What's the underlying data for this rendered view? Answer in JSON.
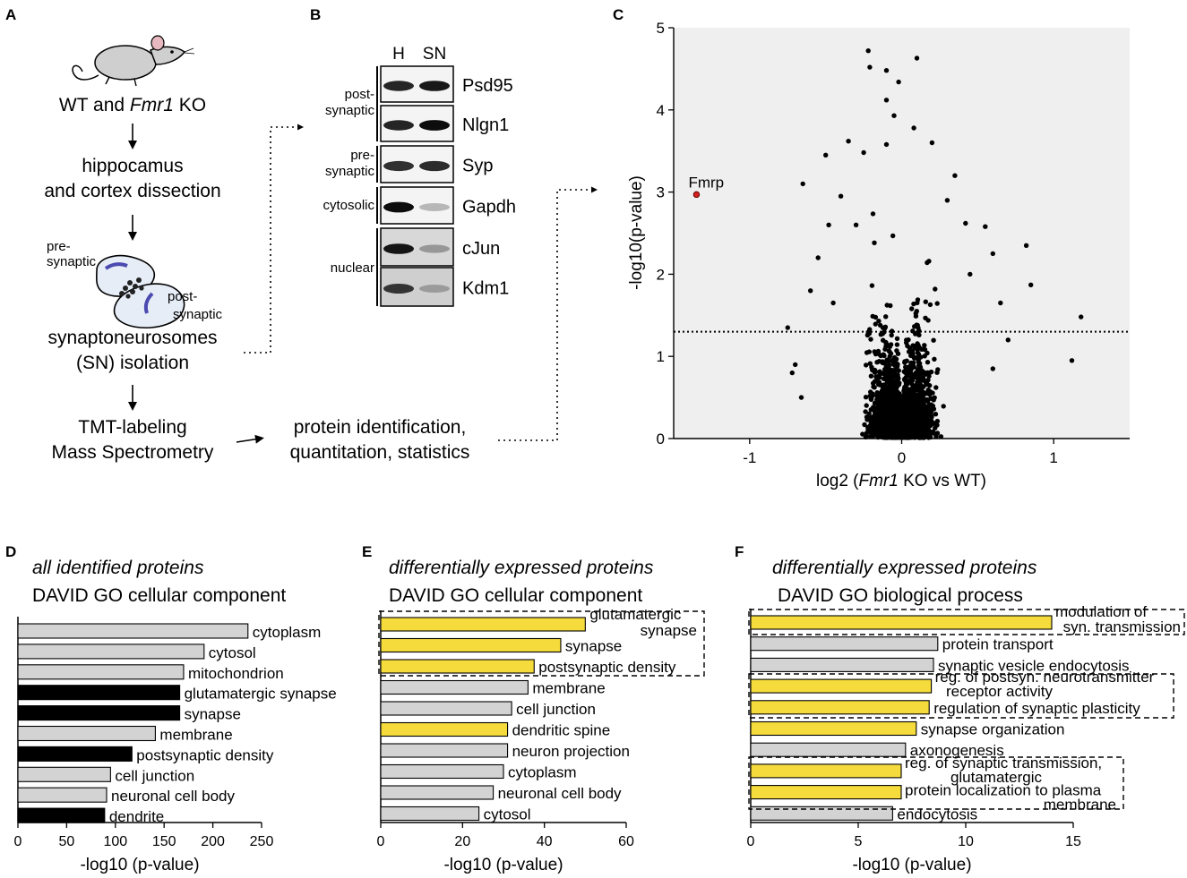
{
  "panel_a": {
    "letter": "A",
    "mouse_label_pre": "WT and ",
    "mouse_label_gene": "Fmr1",
    "mouse_label_post": " KO",
    "step1_line1": "hippocamus",
    "step1_line2": "and cortex dissection",
    "pre_synaptic_1": "pre-",
    "pre_synaptic_2": "synaptic",
    "post_synaptic_1": "post-",
    "post_synaptic_2": "synaptic",
    "step2_line1": "synaptoneurosomes",
    "step2_line2": "(SN) isolation",
    "step3_line1": "TMT-labeling",
    "step3_line2": "Mass Spectrometry",
    "step4_line1": "protein identification,",
    "step4_line2": "quantitation, statistics"
  },
  "panel_b": {
    "letter": "B",
    "col_h": "H",
    "col_sn": "SN",
    "groups": [
      {
        "label1": "post-",
        "label2": "synaptic"
      },
      {
        "label1": "pre-",
        "label2": "synaptic"
      },
      {
        "label1": "cytosolic",
        "label2": ""
      },
      {
        "label1": "nuclear",
        "label2": ""
      }
    ],
    "blots": [
      "Psd95",
      "Nlgn1",
      "Syp",
      "Gapdh",
      "cJun",
      "Kdm1"
    ]
  },
  "panel_c": {
    "letter": "C",
    "chart_data": {
      "type": "scatter",
      "title": "",
      "xlabel_pre": "log2 (",
      "xlabel_gene": "Fmr1",
      "xlabel_post": " KO vs WT)",
      "ylabel": "-log10(p-value)",
      "xlim": [
        -1.5,
        1.5
      ],
      "ylim": [
        0,
        5
      ],
      "xticks": [
        "-1",
        "0",
        "1"
      ],
      "yticks": [
        "0",
        "1",
        "2",
        "3",
        "4",
        "5"
      ],
      "threshold_y": 1.3,
      "highlight": {
        "name": "Fmrp",
        "x": -1.35,
        "y": 2.97,
        "color": "#d62020"
      },
      "outliers": [
        [
          -0.22,
          4.72
        ],
        [
          0.1,
          4.63
        ],
        [
          -0.21,
          4.52
        ],
        [
          -0.1,
          4.48
        ],
        [
          -0.02,
          4.34
        ],
        [
          -0.1,
          4.12
        ],
        [
          -0.05,
          3.93
        ],
        [
          0.08,
          3.78
        ],
        [
          -0.1,
          3.58
        ],
        [
          -0.35,
          3.62
        ],
        [
          -0.65,
          3.1
        ],
        [
          -0.5,
          3.45
        ],
        [
          -0.25,
          3.48
        ],
        [
          0.2,
          3.6
        ],
        [
          0.35,
          3.2
        ],
        [
          0.42,
          2.62
        ],
        [
          0.55,
          2.58
        ],
        [
          0.82,
          2.35
        ],
        [
          0.85,
          1.87
        ],
        [
          1.18,
          1.48
        ],
        [
          1.12,
          0.95
        ],
        [
          0.6,
          2.25
        ],
        [
          0.7,
          1.2
        ],
        [
          -0.6,
          1.8
        ],
        [
          -0.55,
          2.2
        ],
        [
          -0.48,
          2.6
        ],
        [
          -0.75,
          1.35
        ],
        [
          -0.7,
          0.9
        ],
        [
          -0.72,
          0.8
        ],
        [
          -0.66,
          0.5
        ],
        [
          -0.45,
          1.65
        ],
        [
          0.65,
          1.65
        ],
        [
          0.6,
          0.85
        ],
        [
          0.3,
          2.9
        ],
        [
          -0.4,
          2.95
        ],
        [
          0.45,
          2.0
        ],
        [
          -0.3,
          2.6
        ]
      ],
      "point_count": 3500
    }
  },
  "panel_d": {
    "letter": "D",
    "title1": "all identified proteins",
    "title2": "DAVID GO cellular component",
    "chart_data": {
      "type": "bar",
      "orientation": "horizontal",
      "xlabel": "-log10 (p-value)",
      "xlim": [
        0,
        250
      ],
      "xticks": [
        "0",
        "50",
        "100",
        "150",
        "200",
        "250"
      ],
      "bars": [
        {
          "label": "cytoplasm",
          "value": 236,
          "color": "#d3d3d3"
        },
        {
          "label": "cytosol",
          "value": 191,
          "color": "#d3d3d3"
        },
        {
          "label": "mitochondrion",
          "value": 170,
          "color": "#d3d3d3"
        },
        {
          "label": "glutamatergic synapse",
          "value": 166,
          "color": "#000000"
        },
        {
          "label": "synapse",
          "value": 166,
          "color": "#000000"
        },
        {
          "label": "membrane",
          "value": 141,
          "color": "#d3d3d3"
        },
        {
          "label": "postsynaptic density",
          "value": 117,
          "color": "#000000"
        },
        {
          "label": "cell junction",
          "value": 95,
          "color": "#d3d3d3"
        },
        {
          "label": "neuronal cell body",
          "value": 91,
          "color": "#d3d3d3"
        },
        {
          "label": "dendrite",
          "value": 89,
          "color": "#000000"
        }
      ]
    }
  },
  "panel_e": {
    "letter": "E",
    "title1": "differentially expressed proteins",
    "title2": "DAVID GO cellular component",
    "chart_data": {
      "type": "bar",
      "orientation": "horizontal",
      "xlabel": "-log10 (p-value)",
      "xlim": [
        0,
        60
      ],
      "xticks": [
        "0",
        "20",
        "40",
        "60"
      ],
      "bars": [
        {
          "label": "glutamatergic synapse",
          "value": 50,
          "color": "#f5dc3c"
        },
        {
          "label": "synapse",
          "value": 44,
          "color": "#f5dc3c"
        },
        {
          "label": "postsynaptic density",
          "value": 37.5,
          "color": "#f5dc3c"
        },
        {
          "label": "membrane",
          "value": 36,
          "color": "#d3d3d3"
        },
        {
          "label": "cell junction",
          "value": 32,
          "color": "#d3d3d3"
        },
        {
          "label": "dendritic spine",
          "value": 31,
          "color": "#f5dc3c"
        },
        {
          "label": "neuron projection",
          "value": 31,
          "color": "#d3d3d3"
        },
        {
          "label": "cytoplasm",
          "value": 30,
          "color": "#d3d3d3"
        },
        {
          "label": "neuronal cell body",
          "value": 27.5,
          "color": "#d3d3d3"
        },
        {
          "label": "cytosol",
          "value": 24,
          "color": "#d3d3d3"
        }
      ]
    }
  },
  "panel_f": {
    "letter": "F",
    "title1": "differentially expressed proteins",
    "title2": "DAVID GO biological process",
    "chart_data": {
      "type": "bar",
      "orientation": "horizontal",
      "xlabel": "-log10 (p-value)",
      "xlim": [
        0,
        15
      ],
      "xticks": [
        "0",
        "5",
        "10",
        "15"
      ],
      "bars": [
        {
          "label": "modulation of syn. transmission",
          "value": 14,
          "color": "#f5dc3c"
        },
        {
          "label": "protein transport",
          "value": 8.7,
          "color": "#d3d3d3"
        },
        {
          "label": "synaptic vesicle endocytosis",
          "value": 8.5,
          "color": "#d3d3d3"
        },
        {
          "label": "reg. of postsyn. neurotransmitter receptor activity",
          "value": 8.4,
          "color": "#f5dc3c"
        },
        {
          "label": "regulation of synaptic plasticity",
          "value": 8.3,
          "color": "#f5dc3c"
        },
        {
          "label": "synapse organization",
          "value": 7.7,
          "color": "#f5dc3c"
        },
        {
          "label": "axonogenesis",
          "value": 7.2,
          "color": "#d3d3d3"
        },
        {
          "label": "reg. of synaptic transmission, glutamatergic",
          "value": 7.0,
          "color": "#f5dc3c"
        },
        {
          "label": "protein localization to plasma membrane",
          "value": 7.0,
          "color": "#f5dc3c"
        },
        {
          "label": "endocytosis",
          "value": 6.6,
          "color": "#d3d3d3"
        }
      ]
    }
  }
}
